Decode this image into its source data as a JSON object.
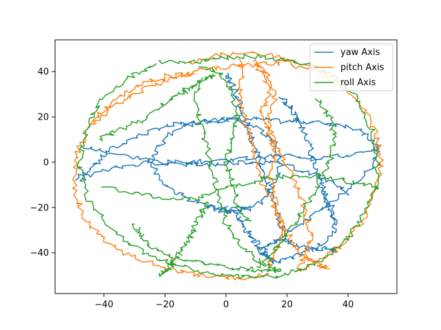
{
  "chart_data": {
    "type": "line",
    "title": "",
    "xlabel": "",
    "ylabel": "",
    "xlim": [
      -56,
      56
    ],
    "ylim": [
      -58,
      54
    ],
    "xticks": [
      -40,
      -20,
      0,
      20,
      40
    ],
    "yticks": [
      -40,
      -20,
      0,
      20,
      40
    ],
    "legend": {
      "placement": "top-right"
    },
    "grid": false,
    "series": [
      {
        "name": "yaw Axis",
        "color": "#1f77b4",
        "segments": [
          {
            "x": [
              -49,
              -44,
              -38,
              -30,
              -22,
              -14,
              -6,
              2,
              10,
              18,
              26,
              34,
              40,
              46,
              50,
              48,
              40,
              30,
              22,
              16
            ],
            "y": [
              -8,
              -2,
              5,
              11,
              15,
              17,
              18,
              19,
              19,
              18,
              18,
              17,
              16,
              12,
              6,
              -2,
              -12,
              -22,
              -30,
              -36
            ]
          },
          {
            "x": [
              -48,
              -40,
              -30,
              -20,
              -10,
              0,
              10,
              20,
              30,
              40,
              50
            ],
            "y": [
              7,
              5,
              2,
              0,
              0,
              1,
              2,
              3,
              2,
              3,
              5
            ]
          },
          {
            "x": [
              0,
              -8,
              -16,
              -22,
              -24,
              -22,
              -16,
              -8,
              0,
              8,
              14,
              18,
              16,
              10,
              0
            ],
            "y": [
              19,
              18,
              15,
              8,
              0,
              -8,
              -14,
              -18,
              -21,
              -21,
              -14,
              -2,
              8,
              16,
              19
            ]
          },
          {
            "x": [
              -49,
              -38,
              -26,
              -14,
              -4,
              4,
              12,
              20,
              28,
              36,
              40
            ],
            "y": [
              -8,
              -3,
              0,
              -1,
              -1,
              0,
              0,
              -1,
              -5,
              -10,
              -14
            ]
          },
          {
            "x": [
              0,
              4,
              6,
              8,
              10,
              12,
              14
            ],
            "y": [
              -20,
              -24,
              -28,
              -32,
              -36,
              -40,
              -42
            ]
          },
          {
            "x": [
              -6,
              -2,
              2,
              5,
              8
            ],
            "y": [
              -19,
              -21,
              -22,
              -21,
              -20
            ]
          },
          {
            "x": [
              30,
              34,
              36,
              32,
              26,
              20,
              16,
              12,
              14,
              18,
              22,
              28,
              34,
              36
            ],
            "y": [
              -10,
              -18,
              -28,
              -36,
              -40,
              -42,
              -44,
              -40,
              -36,
              -34,
              -36,
              -38,
              -38,
              -40
            ]
          },
          {
            "x": [
              18,
              20,
              22,
              24,
              26,
              28,
              30,
              32,
              34,
              36
            ],
            "y": [
              28,
              26,
              22,
              18,
              12,
              4,
              -4,
              -12,
              -20,
              -28
            ]
          },
          {
            "x": [
              0,
              2,
              4,
              6,
              8,
              10,
              12,
              14,
              16,
              18,
              20
            ],
            "y": [
              39,
              35,
              28,
              20,
              12,
              4,
              -4,
              -12,
              -20,
              -28,
              -34
            ]
          }
        ]
      },
      {
        "name": "pitch Axis",
        "color": "#ff7f0e",
        "segments": [
          {
            "x": [
              -10,
              -20,
              -30,
              -38,
              -44,
              -48,
              -50,
              -49,
              -46,
              -40,
              -32,
              -22,
              -12,
              -2,
              8,
              14
            ],
            "y": [
              39,
              38,
              33,
              26,
              17,
              6,
              -4,
              -16,
              -26,
              -34,
              -41,
              -46,
              -49,
              -51,
              -51,
              -49
            ]
          },
          {
            "x": [
              -12,
              -4,
              6,
              16,
              26,
              36,
              44,
              49,
              51,
              49,
              45,
              38,
              30,
              24
            ],
            "y": [
              43,
              47,
              48,
              47,
              43,
              36,
              26,
              14,
              2,
              -12,
              -26,
              -37,
              -44,
              -48
            ]
          },
          {
            "x": [
              4,
              6,
              4,
              6,
              8,
              10,
              12,
              16,
              18,
              16,
              14
            ],
            "y": [
              45,
              40,
              30,
              20,
              10,
              0,
              -10,
              -20,
              -30,
              -40,
              -47
            ]
          },
          {
            "x": [
              10,
              14,
              16,
              14,
              16,
              20,
              24,
              26,
              28,
              26,
              24
            ],
            "y": [
              45,
              38,
              28,
              18,
              8,
              -2,
              -12,
              -22,
              -32,
              -40,
              -47
            ]
          },
          {
            "x": [
              10,
              12,
              14,
              12,
              14,
              16,
              14,
              16,
              18,
              22,
              26,
              30,
              34
            ],
            "y": [
              44,
              38,
              30,
              22,
              14,
              4,
              -6,
              -16,
              -26,
              -36,
              -42,
              -45,
              -47
            ]
          },
          {
            "x": [
              -44,
              -38,
              -30,
              -20,
              -10,
              0,
              10,
              20,
              30,
              36
            ],
            "y": [
              16,
              24,
              30,
              36,
              40,
              42,
              43,
              44,
              40,
              34
            ]
          }
        ]
      },
      {
        "name": "roll Axis",
        "color": "#2ca02c",
        "segments": [
          {
            "x": [
              -22,
              -30,
              -38,
              -44,
              -47,
              -48,
              -46,
              -40,
              -32,
              -22,
              -12,
              -2,
              8,
              18,
              26,
              34,
              40,
              46,
              49,
              50,
              48,
              44,
              38,
              30
            ],
            "y": [
              44,
              39,
              31,
              21,
              10,
              -2,
              -14,
              -26,
              -36,
              -43,
              -47,
              -50,
              -51,
              -50,
              -47,
              -41,
              -33,
              -22,
              -10,
              2,
              14,
              26,
              36,
              42
            ]
          },
          {
            "x": [
              -22,
              -12,
              -2,
              8,
              18,
              28,
              30
            ],
            "y": [
              44,
              44,
              46,
              47,
              45,
              43,
              42
            ]
          },
          {
            "x": [
              -42,
              -36,
              -28,
              -22,
              -18,
              -14,
              -10,
              -6,
              -4
            ],
            "y": [
              10,
              14,
              18,
              24,
              28,
              31,
              34,
              37,
              39
            ]
          },
          {
            "x": [
              -8,
              -10,
              -8,
              -6,
              -4,
              -2,
              0,
              4,
              10,
              14,
              18
            ],
            "y": [
              38,
              28,
              16,
              4,
              -6,
              -16,
              -26,
              -36,
              -43,
              -46,
              -48
            ]
          },
          {
            "x": [
              -30,
              -28,
              -24,
              -18,
              -10,
              -2,
              6,
              12,
              18
            ],
            "y": [
              -28,
              -32,
              -38,
              -42,
              -44,
              -46,
              -47,
              -48,
              -48
            ]
          },
          {
            "x": [
              -40,
              -30,
              -20,
              -10,
              0,
              10,
              20,
              30,
              38,
              46,
              50
            ],
            "y": [
              -10,
              -14,
              -16,
              -16,
              -12,
              -8,
              -6,
              -6,
              -8,
              -10,
              -12
            ]
          },
          {
            "x": [
              -8,
              -2,
              2,
              4,
              2,
              0,
              2,
              4,
              8
            ],
            "y": [
              42,
              40,
              30,
              20,
              10,
              0,
              -10,
              -20,
              -26
            ]
          },
          {
            "x": [
              30,
              34,
              36,
              34,
              30,
              26,
              22,
              18,
              14,
              10
            ],
            "y": [
              28,
              20,
              10,
              0,
              -10,
              -20,
              -28,
              -36,
              -42,
              -46
            ]
          },
          {
            "x": [
              -6,
              -8,
              -10,
              -12,
              -14,
              -16,
              -18,
              -20,
              -22
            ],
            "y": [
              -18,
              -22,
              -28,
              -34,
              -38,
              -42,
              -46,
              -48,
              -50
            ]
          }
        ]
      }
    ]
  }
}
